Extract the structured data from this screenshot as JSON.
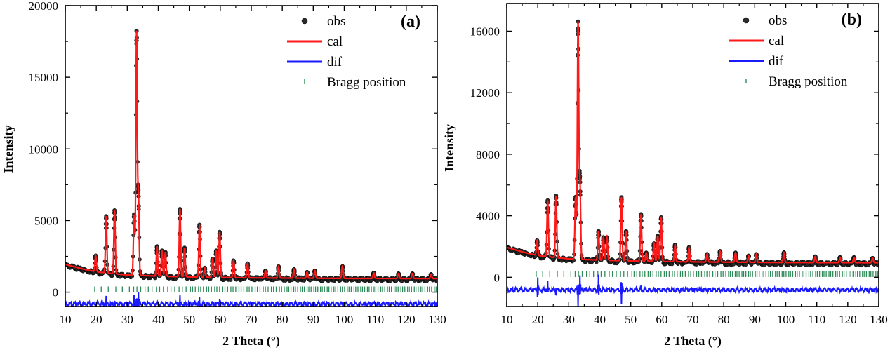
{
  "colors": {
    "obs": "#000000",
    "cal": "#ff1a1a",
    "dif": "#1a1aff",
    "bragg": "#2e8b57"
  },
  "chart_data": [
    {
      "type": "line",
      "panel_label": "(a)",
      "xlabel": "2 Theta (°)",
      "ylabel": "Intensity",
      "xlim": [
        10,
        130
      ],
      "ylim": [
        -1000,
        20000
      ],
      "xticks": [
        10,
        20,
        30,
        40,
        50,
        60,
        70,
        80,
        90,
        100,
        110,
        120,
        130
      ],
      "xtick_labels": [
        "10",
        "20",
        "30",
        "40",
        "50",
        "60",
        "70",
        "80",
        "90",
        "100",
        "110",
        "120",
        "130"
      ],
      "yticks": [
        0,
        5000,
        10000,
        15000,
        20000
      ],
      "ytick_labels": [
        "0",
        "5000",
        "10000",
        "15000",
        "20000"
      ],
      "legend": {
        "position": "top-right",
        "entries": [
          "obs",
          "cal",
          "dif",
          "Bragg position"
        ]
      },
      "background": [
        [
          10,
          1950
        ],
        [
          15,
          1650
        ],
        [
          20,
          1420
        ],
        [
          25,
          1300
        ],
        [
          30,
          1200
        ],
        [
          40,
          1120
        ],
        [
          50,
          1060
        ],
        [
          70,
          1000
        ],
        [
          100,
          960
        ],
        [
          130,
          950
        ]
      ],
      "peaks": [
        {
          "x": 19.8,
          "y": 2550
        },
        {
          "x": 23.2,
          "y": 5300
        },
        {
          "x": 25.9,
          "y": 5700
        },
        {
          "x": 32.2,
          "y": 5400
        },
        {
          "x": 33.0,
          "y": 18100
        },
        {
          "x": 33.6,
          "y": 6700
        },
        {
          "x": 39.6,
          "y": 3200
        },
        {
          "x": 41.2,
          "y": 2900
        },
        {
          "x": 42.3,
          "y": 2800
        },
        {
          "x": 47.0,
          "y": 5800
        },
        {
          "x": 48.5,
          "y": 3100
        },
        {
          "x": 53.3,
          "y": 4700
        },
        {
          "x": 55.0,
          "y": 1700
        },
        {
          "x": 57.5,
          "y": 2300
        },
        {
          "x": 58.7,
          "y": 2900
        },
        {
          "x": 59.8,
          "y": 4200
        },
        {
          "x": 64.3,
          "y": 2200
        },
        {
          "x": 68.8,
          "y": 2000
        },
        {
          "x": 74.6,
          "y": 1500
        },
        {
          "x": 78.8,
          "y": 1800
        },
        {
          "x": 83.8,
          "y": 1600
        },
        {
          "x": 88.0,
          "y": 1400
        },
        {
          "x": 90.5,
          "y": 1500
        },
        {
          "x": 99.4,
          "y": 1800
        },
        {
          "x": 109.5,
          "y": 1350
        },
        {
          "x": 117.5,
          "y": 1300
        },
        {
          "x": 122.0,
          "y": 1300
        },
        {
          "x": 128.0,
          "y": 1250
        }
      ],
      "dif_baseline": -750,
      "dif_spikes": [
        {
          "x": 23.2,
          "y": 500
        },
        {
          "x": 25.9,
          "y": -600
        },
        {
          "x": 32.2,
          "y": 500
        },
        {
          "x": 33.0,
          "y": -1100
        },
        {
          "x": 33.6,
          "y": 800
        },
        {
          "x": 47.0,
          "y": 500
        },
        {
          "x": 53.3,
          "y": -600
        },
        {
          "x": 59.8,
          "y": 400
        }
      ],
      "bragg_y": 200,
      "bragg_start": 19.5
    },
    {
      "type": "line",
      "panel_label": "(b)",
      "xlabel": "2 Theta (°)",
      "ylabel": "Intensity",
      "xlim": [
        10,
        130
      ],
      "ylim": [
        -1900,
        17800
      ],
      "xticks": [
        10,
        20,
        30,
        40,
        50,
        60,
        70,
        80,
        90,
        100,
        110,
        120,
        130
      ],
      "xtick_labels": [
        "10",
        "20",
        "30",
        "40",
        "50",
        "60",
        "70",
        "80",
        "90",
        "100",
        "110",
        "120",
        "130"
      ],
      "yticks": [
        0,
        4000,
        8000,
        12000,
        16000
      ],
      "ytick_labels": [
        "0",
        "4000",
        "8000",
        "12000",
        "16000"
      ],
      "legend": {
        "position": "top-right",
        "entries": [
          "obs",
          "cal",
          "dif",
          "Bragg position"
        ]
      },
      "background": [
        [
          10,
          1950
        ],
        [
          15,
          1650
        ],
        [
          20,
          1420
        ],
        [
          25,
          1300
        ],
        [
          30,
          1200
        ],
        [
          40,
          1120
        ],
        [
          50,
          1060
        ],
        [
          70,
          1000
        ],
        [
          100,
          960
        ],
        [
          130,
          950
        ]
      ],
      "peaks": [
        {
          "x": 19.8,
          "y": 2400
        },
        {
          "x": 23.2,
          "y": 5000
        },
        {
          "x": 25.9,
          "y": 5300
        },
        {
          "x": 32.2,
          "y": 5200
        },
        {
          "x": 33.0,
          "y": 16500
        },
        {
          "x": 33.6,
          "y": 6200
        },
        {
          "x": 39.6,
          "y": 3000
        },
        {
          "x": 41.2,
          "y": 2600
        },
        {
          "x": 42.3,
          "y": 2600
        },
        {
          "x": 47.0,
          "y": 5200
        },
        {
          "x": 48.5,
          "y": 3000
        },
        {
          "x": 53.3,
          "y": 4100
        },
        {
          "x": 55.0,
          "y": 1600
        },
        {
          "x": 57.5,
          "y": 2200
        },
        {
          "x": 58.7,
          "y": 2700
        },
        {
          "x": 59.8,
          "y": 3900
        },
        {
          "x": 64.3,
          "y": 2100
        },
        {
          "x": 68.8,
          "y": 1950
        },
        {
          "x": 74.6,
          "y": 1500
        },
        {
          "x": 78.8,
          "y": 1700
        },
        {
          "x": 83.8,
          "y": 1600
        },
        {
          "x": 88.0,
          "y": 1400
        },
        {
          "x": 90.5,
          "y": 1500
        },
        {
          "x": 99.4,
          "y": 1600
        },
        {
          "x": 109.5,
          "y": 1350
        },
        {
          "x": 117.5,
          "y": 1300
        },
        {
          "x": 122.0,
          "y": 1300
        },
        {
          "x": 128.0,
          "y": 1250
        }
      ],
      "dif_baseline": -750,
      "dif_spikes": [
        {
          "x": 20.0,
          "y": 900
        },
        {
          "x": 23.2,
          "y": 500
        },
        {
          "x": 25.9,
          "y": -400
        },
        {
          "x": 33.0,
          "y": -1000
        },
        {
          "x": 33.6,
          "y": 900
        },
        {
          "x": 39.6,
          "y": 900
        },
        {
          "x": 47.0,
          "y": -1000
        },
        {
          "x": 53.3,
          "y": 300
        }
      ],
      "bragg_y": 200,
      "bragg_start": 19.5
    }
  ]
}
